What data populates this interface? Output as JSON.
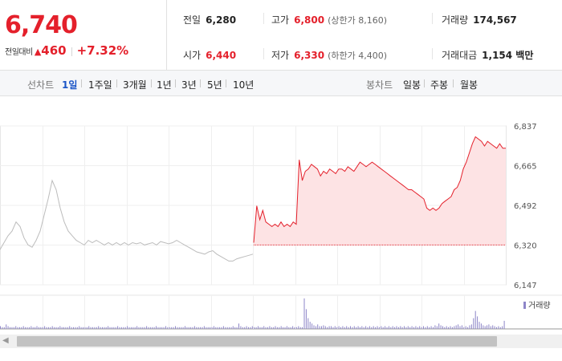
{
  "price": {
    "current": "6,740",
    "change_label": "전일대비",
    "change_dir_icon": "▲",
    "change_amount": "460",
    "change_percent": "+7.32%"
  },
  "stats": {
    "prev_close": {
      "label": "전일",
      "value": "6,280"
    },
    "open": {
      "label": "시가",
      "value": "6,440"
    },
    "high": {
      "label": "고가",
      "value": "6,800",
      "limit": "(상한가 8,160)"
    },
    "low": {
      "label": "저가",
      "value": "6,330",
      "limit": "(하한가 4,400)"
    },
    "volume": {
      "label": "거래량",
      "value": "174,567"
    },
    "amount": {
      "label": "거래대금",
      "value": "1,154 백만"
    }
  },
  "line_tabs": {
    "label": "선차트",
    "items": [
      "1일",
      "1주일",
      "3개월",
      "1년",
      "3년",
      "5년",
      "10년"
    ],
    "active": 0
  },
  "candle_tabs": {
    "label": "봉차트",
    "items": [
      "일봉",
      "주봉",
      "월봉"
    ]
  },
  "chart_data": {
    "type": "line",
    "y_ticks": [
      "6,837",
      "6,665",
      "6,492",
      "6,320",
      "6,147"
    ],
    "ylim": [
      6147,
      6837
    ],
    "reference_value": 6280,
    "legend": "거래량",
    "colors": {
      "today": "#e4202b",
      "today_fill": "#fde3e4",
      "prev": "#bcbcbc",
      "volume": "#8d85c8"
    },
    "prev_session": [
      6300,
      6330,
      6360,
      6380,
      6420,
      6400,
      6350,
      6320,
      6310,
      6340,
      6380,
      6450,
      6520,
      6600,
      6560,
      6480,
      6420,
      6380,
      6360,
      6340,
      6330,
      6320,
      6340,
      6330,
      6340,
      6330,
      6320,
      6330,
      6320,
      6330,
      6320,
      6330,
      6320,
      6330,
      6325,
      6330,
      6320,
      6325,
      6330,
      6320,
      6335,
      6330,
      6325,
      6330,
      6340,
      6330,
      6320,
      6310,
      6300,
      6290,
      6285,
      6280,
      6290,
      6295,
      6280,
      6270,
      6260,
      6250,
      6250,
      6260,
      6265,
      6270,
      6275,
      6280
    ],
    "today_session": [
      6330,
      6490,
      6430,
      6470,
      6420,
      6410,
      6400,
      6410,
      6400,
      6420,
      6400,
      6410,
      6400,
      6420,
      6410,
      6690,
      6600,
      6640,
      6650,
      6670,
      6660,
      6650,
      6620,
      6640,
      6630,
      6650,
      6640,
      6630,
      6650,
      6650,
      6640,
      6660,
      6650,
      6640,
      6660,
      6680,
      6670,
      6660,
      6670,
      6680,
      6670,
      6660,
      6650,
      6640,
      6630,
      6620,
      6610,
      6600,
      6590,
      6580,
      6570,
      6560,
      6560,
      6550,
      6540,
      6530,
      6520,
      6480,
      6470,
      6480,
      6470,
      6480,
      6500,
      6510,
      6520,
      6530,
      6560,
      6570,
      6600,
      6650,
      6680,
      6720,
      6760,
      6790,
      6780,
      6770,
      6750,
      6770,
      6760,
      6750,
      6740,
      6760,
      6740,
      6740
    ],
    "volume": [
      3,
      2,
      2,
      5,
      3,
      2,
      2,
      2,
      3,
      2,
      2,
      2,
      3,
      2,
      2,
      2,
      3,
      2,
      2,
      3,
      2,
      2,
      2,
      3,
      2,
      2,
      2,
      3,
      2,
      2,
      2,
      3,
      2,
      2,
      2,
      2,
      3,
      2,
      2,
      2,
      2,
      3,
      2,
      2,
      2,
      2,
      3,
      2,
      2,
      2,
      2,
      3,
      2,
      2,
      2,
      2,
      3,
      2,
      2,
      2,
      2,
      3,
      2,
      2,
      2,
      2,
      3,
      2,
      2,
      2,
      2,
      3,
      2,
      2,
      2,
      2,
      3,
      2,
      2,
      2,
      2,
      3,
      2,
      2,
      2,
      2,
      3,
      2,
      2,
      2,
      2,
      3,
      2,
      2,
      2,
      2,
      3,
      2,
      2,
      2,
      2,
      3,
      2,
      2,
      2,
      2,
      3,
      2,
      2,
      2,
      2,
      3,
      2,
      2,
      2,
      2,
      3,
      2,
      2,
      2,
      2,
      3,
      2,
      2,
      6,
      3,
      2,
      2,
      3,
      2,
      2,
      3,
      2,
      2,
      3,
      2,
      2,
      3,
      2,
      2,
      3,
      2,
      2,
      3,
      2,
      2,
      3,
      2,
      2,
      3,
      2,
      2,
      3,
      2,
      2,
      3,
      2,
      2,
      34,
      22,
      12,
      8,
      6,
      4,
      3,
      5,
      3,
      3,
      4,
      3,
      2,
      3,
      3,
      2,
      3,
      2,
      3,
      2,
      3,
      2,
      3,
      2,
      3,
      2,
      3,
      2,
      3,
      2,
      3,
      2,
      3,
      2,
      3,
      2,
      3,
      2,
      3,
      2,
      3,
      2,
      3,
      2,
      3,
      2,
      3,
      2,
      3,
      2,
      3,
      2,
      3,
      2,
      3,
      2,
      3,
      2,
      3,
      2,
      3,
      2,
      3,
      2,
      3,
      2,
      3,
      2,
      4,
      3,
      6,
      4,
      3,
      2,
      3,
      2,
      3,
      2,
      3,
      4,
      5,
      3,
      4,
      2,
      3,
      2,
      4,
      5,
      12,
      20,
      14,
      8,
      6,
      4,
      3,
      4,
      5,
      3,
      4,
      3,
      2,
      3,
      2,
      3,
      9
    ]
  }
}
